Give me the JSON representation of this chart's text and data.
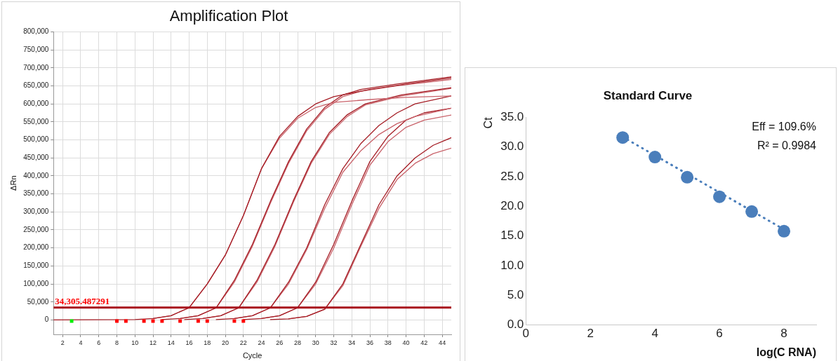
{
  "chart_data": [
    {
      "type": "line",
      "title": "Amplification Plot",
      "xlabel": "Cycle",
      "ylabel": "ΔRn",
      "xlim": [
        1,
        45
      ],
      "xticks": [
        2,
        4,
        6,
        8,
        10,
        12,
        14,
        16,
        18,
        20,
        22,
        24,
        26,
        28,
        30,
        32,
        34,
        36,
        38,
        40,
        42,
        44
      ],
      "ylim": [
        -40000,
        800000
      ],
      "yticks": [
        {
          "value": 0,
          "label": "0"
        },
        {
          "value": 50000,
          "label": "50,000"
        },
        {
          "value": 100000,
          "label": "100,000"
        },
        {
          "value": 150000,
          "label": "150,000"
        },
        {
          "value": 200000,
          "label": "200,000"
        },
        {
          "value": 250000,
          "label": "250,000"
        },
        {
          "value": 300000,
          "label": "300,000"
        },
        {
          "value": 350000,
          "label": "350,000"
        },
        {
          "value": 400000,
          "label": "400,000"
        },
        {
          "value": 450000,
          "label": "450,000"
        },
        {
          "value": 500000,
          "label": "500,000"
        },
        {
          "value": 550000,
          "label": "550,000"
        },
        {
          "value": 600000,
          "label": "600,000"
        },
        {
          "value": 650000,
          "label": "650,000"
        },
        {
          "value": 700000,
          "label": "700,000"
        },
        {
          "value": 750000,
          "label": "750,000"
        },
        {
          "value": 800000,
          "label": "800,000"
        }
      ],
      "grid": true,
      "legend": false,
      "marker": "none",
      "line_style": "solid",
      "ref_lines": [
        {
          "axis": "y",
          "value": 34305.487291,
          "label": "34,305.487291",
          "color": "#a8121c"
        }
      ],
      "series": [
        {
          "color": "#a51c24",
          "x": [
            1,
            10,
            12,
            14,
            16,
            18,
            20,
            22,
            24,
            26,
            28,
            30,
            32,
            36,
            40,
            45
          ],
          "values": [
            0,
            1000,
            4000,
            12000,
            34000,
            100000,
            180000,
            290000,
            420000,
            510000,
            565000,
            600000,
            620000,
            640000,
            655000,
            672000
          ]
        },
        {
          "color": "#c9626a",
          "x": [
            12,
            14,
            16,
            18,
            20,
            22,
            24,
            26,
            28,
            30,
            32,
            36,
            40,
            45
          ],
          "values": [
            4000,
            12000,
            34000,
            100000,
            180000,
            290000,
            420000,
            505000,
            560000,
            590000,
            604000,
            612000,
            618000,
            622000
          ]
        },
        {
          "color": "#a51c24",
          "x": [
            13,
            15,
            17,
            19,
            21,
            23,
            25,
            27,
            29,
            31,
            33,
            35,
            39,
            45
          ],
          "values": [
            1000,
            4000,
            12000,
            34000,
            110000,
            210000,
            330000,
            440000,
            530000,
            590000,
            625000,
            640000,
            655000,
            675000
          ]
        },
        {
          "color": "#c9626a",
          "x": [
            15,
            17,
            19,
            21,
            23,
            25,
            27,
            29,
            31,
            33,
            35,
            39,
            45
          ],
          "values": [
            4000,
            12000,
            34000,
            105000,
            205000,
            325000,
            435000,
            525000,
            585000,
            620000,
            635000,
            650000,
            668000
          ]
        },
        {
          "color": "#a51c24",
          "x": [
            15.5,
            17.5,
            19.5,
            21.5,
            23.5,
            25.5,
            27.5,
            29.5,
            31.5,
            33.5,
            35.5,
            39.5,
            45
          ],
          "values": [
            1000,
            4000,
            12000,
            34000,
            110000,
            210000,
            330000,
            440000,
            520000,
            570000,
            600000,
            625000,
            645000
          ]
        },
        {
          "color": "#c9626a",
          "x": [
            17.5,
            19.5,
            21.5,
            23.5,
            25.5,
            27.5,
            29.5,
            31.5,
            33.5,
            35.5,
            39.5,
            45
          ],
          "values": [
            4000,
            12000,
            34000,
            105000,
            205000,
            325000,
            435000,
            515000,
            565000,
            597000,
            622000,
            643000
          ]
        },
        {
          "color": "#a51c24",
          "x": [
            19,
            21,
            23,
            25,
            27,
            29,
            31,
            33,
            35,
            37,
            39,
            41,
            45
          ],
          "values": [
            1000,
            4000,
            12000,
            34000,
            105000,
            200000,
            320000,
            420000,
            490000,
            540000,
            575000,
            600000,
            622000
          ]
        },
        {
          "color": "#c9626a",
          "x": [
            21,
            23,
            25,
            27,
            29,
            31,
            33,
            35,
            37,
            39,
            41,
            45
          ],
          "values": [
            4000,
            12000,
            34000,
            100000,
            195000,
            310000,
            410000,
            470000,
            515000,
            545000,
            565000,
            588000
          ]
        },
        {
          "color": "#a51c24",
          "x": [
            22,
            24,
            26,
            28,
            30,
            32,
            34,
            36,
            38,
            40,
            42,
            45
          ],
          "values": [
            1000,
            4000,
            12000,
            34000,
            105000,
            210000,
            330000,
            440000,
            510000,
            555000,
            575000,
            588000
          ]
        },
        {
          "color": "#c9626a",
          "x": [
            24,
            26,
            28,
            30,
            32,
            34,
            36,
            38,
            40,
            42,
            45
          ],
          "values": [
            4000,
            12000,
            34000,
            100000,
            200000,
            320000,
            430000,
            495000,
            535000,
            555000,
            569000
          ]
        },
        {
          "color": "#a51c24",
          "x": [
            25,
            27,
            29,
            31,
            33,
            35,
            37,
            39,
            41,
            43,
            45
          ],
          "values": [
            1000,
            3000,
            10000,
            30000,
            100000,
            210000,
            320000,
            400000,
            450000,
            485000,
            506000
          ]
        },
        {
          "color": "#c9626a",
          "x": [
            27,
            29,
            31,
            33,
            35,
            37,
            39,
            41,
            43,
            45
          ],
          "values": [
            3000,
            10000,
            30000,
            95000,
            205000,
            310000,
            390000,
            435000,
            462000,
            477000
          ]
        },
        {
          "type": "scatter",
          "marker": "square",
          "color": "#ff0000",
          "x": [
            8,
            9,
            11,
            12,
            13,
            15,
            17,
            18,
            21,
            22
          ],
          "values": [
            -3000,
            -3000,
            -3000,
            -3000,
            -3000,
            -3000,
            -3000,
            -3000,
            -3000,
            -3000
          ]
        },
        {
          "type": "scatter",
          "marker": "square",
          "color": "#00ee00",
          "x": [
            3
          ],
          "values": [
            -3000
          ]
        }
      ]
    },
    {
      "type": "scatter",
      "title": "Standard Curve",
      "xlabel": "log(C RNA)",
      "ylabel": "Ct",
      "xlim": [
        0,
        9
      ],
      "xticks": [
        0,
        2,
        4,
        6,
        8
      ],
      "ylim": [
        0,
        35
      ],
      "yticks": [
        {
          "value": 0,
          "label": "0.0"
        },
        {
          "value": 5,
          "label": "5.0"
        },
        {
          "value": 10,
          "label": "10.0"
        },
        {
          "value": 15,
          "label": "15.0"
        },
        {
          "value": 20,
          "label": "20.0"
        },
        {
          "value": 25,
          "label": "25.0"
        },
        {
          "value": 30,
          "label": "30.0"
        },
        {
          "value": 35,
          "label": "35.0"
        }
      ],
      "grid": false,
      "legend": false,
      "marker": "circle",
      "annotations": [
        "Eff = 109.6%",
        "R² = 0.9984"
      ],
      "series": [
        {
          "type": "line",
          "marker": "none",
          "line_style": "dotted",
          "color": "#4a7ebb",
          "x": [
            3,
            8
          ],
          "values": [
            31.7,
            16.1
          ]
        },
        {
          "color": "#4a7ebb",
          "x": [
            3,
            4,
            5,
            6,
            7,
            8
          ],
          "values": [
            31.6,
            28.3,
            24.9,
            21.6,
            19.1,
            15.8
          ]
        }
      ]
    }
  ]
}
